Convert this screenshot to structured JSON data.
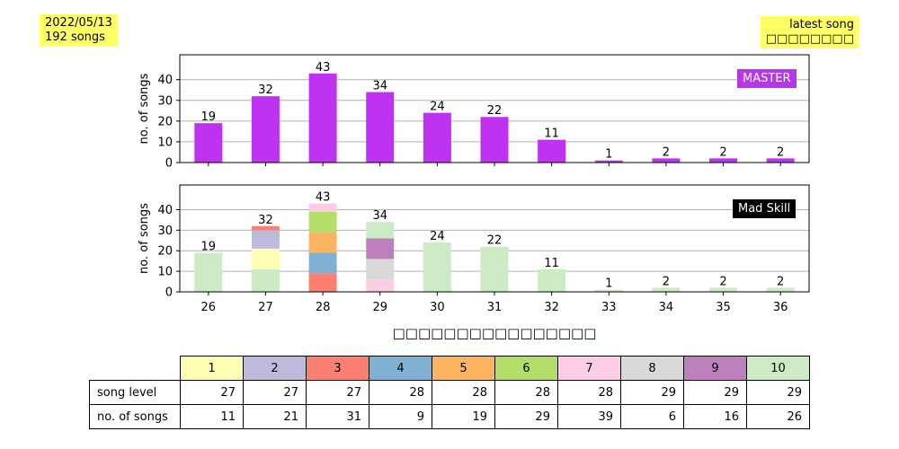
{
  "info": {
    "date": "2022/05/13",
    "song_count": "192 songs"
  },
  "latest": {
    "label": "latest song",
    "title": "□□□□□□□□"
  },
  "master_label": "MASTER",
  "mad_label": "Mad Skill",
  "xlabel": "□□□□□□□□□□□□□□□□",
  "colors": {
    "master": "#bf33f0",
    "master_tag": "#b835e8"
  },
  "chart_data": [
    {
      "type": "bar",
      "title": "",
      "categories": [
        "26",
        "27",
        "28",
        "29",
        "30",
        "31",
        "32",
        "33",
        "34",
        "35",
        "36"
      ],
      "values": [
        19,
        32,
        43,
        34,
        24,
        22,
        11,
        1,
        2,
        2,
        2
      ],
      "ylabel": "no. of songs",
      "ylim": [
        0,
        52
      ],
      "yticks": [
        0,
        10,
        20,
        30,
        40
      ],
      "grid": "horizontal",
      "annotation": "MASTER"
    },
    {
      "type": "bar",
      "title": "",
      "stacked": true,
      "categories": [
        "26",
        "27",
        "28",
        "29",
        "30",
        "31",
        "32",
        "33",
        "34",
        "35",
        "36"
      ],
      "xticks": [
        "26",
        "27",
        "28",
        "29",
        "30",
        "31",
        "32",
        "33",
        "34",
        "35",
        "36"
      ],
      "totals": [
        19,
        32,
        43,
        34,
        24,
        22,
        11,
        1,
        2,
        2,
        2
      ],
      "ylabel": "no. of songs",
      "ylim": [
        0,
        52
      ],
      "yticks": [
        0,
        10,
        20,
        30,
        40
      ],
      "grid": "horizontal",
      "annotation": "Mad Skill",
      "xlabel": "□□□□□□□□□□□□□□□□",
      "stacks": [
        [
          {
            "level": 10,
            "value": 19
          }
        ],
        [
          {
            "level": 10,
            "value": 11
          },
          {
            "level": 1,
            "value": 10
          },
          {
            "level": 2,
            "value": 9
          },
          {
            "level": 3,
            "value": 2
          }
        ],
        [
          {
            "level": 3,
            "value": 9
          },
          {
            "level": 4,
            "value": 10
          },
          {
            "level": 5,
            "value": 10
          },
          {
            "level": 6,
            "value": 10
          },
          {
            "level": 7,
            "value": 4
          }
        ],
        [
          {
            "level": 7,
            "value": 6
          },
          {
            "level": 8,
            "value": 10
          },
          {
            "level": 9,
            "value": 10
          },
          {
            "level": 10,
            "value": 8
          }
        ],
        [
          {
            "level": 10,
            "value": 24
          }
        ],
        [
          {
            "level": 10,
            "value": 22
          }
        ],
        [
          {
            "level": 10,
            "value": 11
          }
        ],
        [
          {
            "level": 10,
            "value": 1
          }
        ],
        [
          {
            "level": 10,
            "value": 2
          }
        ],
        [
          {
            "level": 10,
            "value": 2
          }
        ],
        [
          {
            "level": 10,
            "value": 2
          }
        ]
      ],
      "levels": [
        {
          "level": "1",
          "color": "#ffffb3",
          "song_level": "27",
          "songs": "11"
        },
        {
          "level": "2",
          "color": "#bebada",
          "song_level": "27",
          "songs": "21"
        },
        {
          "level": "3",
          "color": "#fb8072",
          "song_level": "27",
          "songs": "31"
        },
        {
          "level": "4",
          "color": "#80b1d3",
          "song_level": "28",
          "songs": "9"
        },
        {
          "level": "5",
          "color": "#fdb462",
          "song_level": "28",
          "songs": "19"
        },
        {
          "level": "6",
          "color": "#b3de69",
          "song_level": "28",
          "songs": "29"
        },
        {
          "level": "7",
          "color": "#fccde5",
          "song_level": "28",
          "songs": "39"
        },
        {
          "level": "8",
          "color": "#d9d9d9",
          "song_level": "29",
          "songs": "6"
        },
        {
          "level": "9",
          "color": "#bc80bd",
          "song_level": "29",
          "songs": "16"
        },
        {
          "level": "10",
          "color": "#ccebc5",
          "song_level": "29",
          "songs": "26"
        }
      ],
      "table_row_labels": [
        "song level",
        "no. of songs"
      ]
    }
  ]
}
